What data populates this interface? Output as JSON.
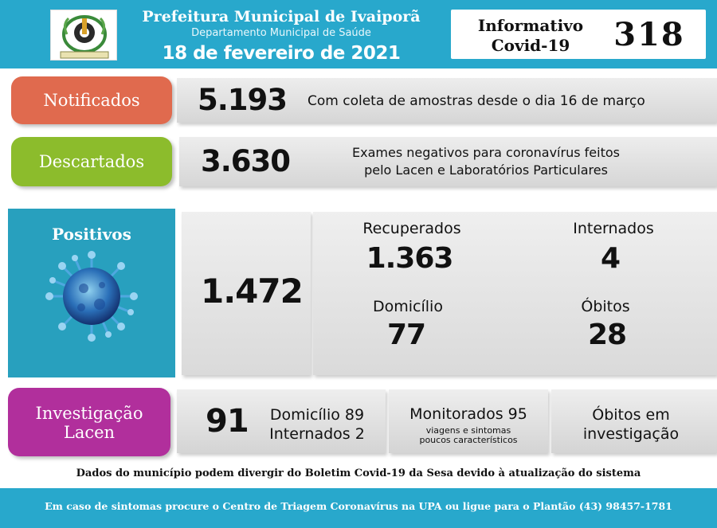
{
  "header": {
    "title": "Prefeitura Municipal de Ivaiporã",
    "subtitle": "Departamento Municipal de Saúde",
    "date": "18 de fevereiro de 2021",
    "bulletin_label_line1": "Informativo",
    "bulletin_label_line2": "Covid-19",
    "bulletin_number": "318",
    "colors": {
      "header_bg": "#28a8cc"
    }
  },
  "notificados": {
    "label": "Notificados",
    "value": "5.193",
    "description": "Com coleta de amostras desde o dia 16 de março",
    "color": "#e06a4e"
  },
  "descartados": {
    "label": "Descartados",
    "value": "3.630",
    "description_line1": "Exames negativos para coronavírus feitos",
    "description_line2": "pelo Lacen e Laboratórios Particulares",
    "color": "#8cbc2c"
  },
  "positivos": {
    "label": "Positivos",
    "value": "1.472",
    "recuperados_label": "Recuperados",
    "recuperados_value": "1.363",
    "internados_label": "Internados",
    "internados_value": "4",
    "domicilio_label": "Domicílio",
    "domicilio_value": "77",
    "obitos_label": "Óbitos",
    "obitos_value": "28",
    "icon": "virus-icon",
    "color": "#28a0be"
  },
  "investigacao": {
    "label_line1": "Investigação",
    "label_line2": "Lacen",
    "value": "91",
    "domicilio": "Domicílio 89",
    "internados": "Internados 2",
    "monitorados": "Monitorados 95",
    "monitorados_sub_line1": "viagens e sintomas",
    "monitorados_sub_line2": "poucos característicos",
    "obitos_line1": "Óbitos em",
    "obitos_line2": "investigação",
    "color": "#b12f9c"
  },
  "note": "Dados do município podem divergir do Boletim Covid-19 da Sesa devido à atualização do sistema",
  "footer": "Em caso de sintomas procure o Centro de Triagem Coronavírus na UPA ou ligue para o Plantão (43) 98457-1781"
}
